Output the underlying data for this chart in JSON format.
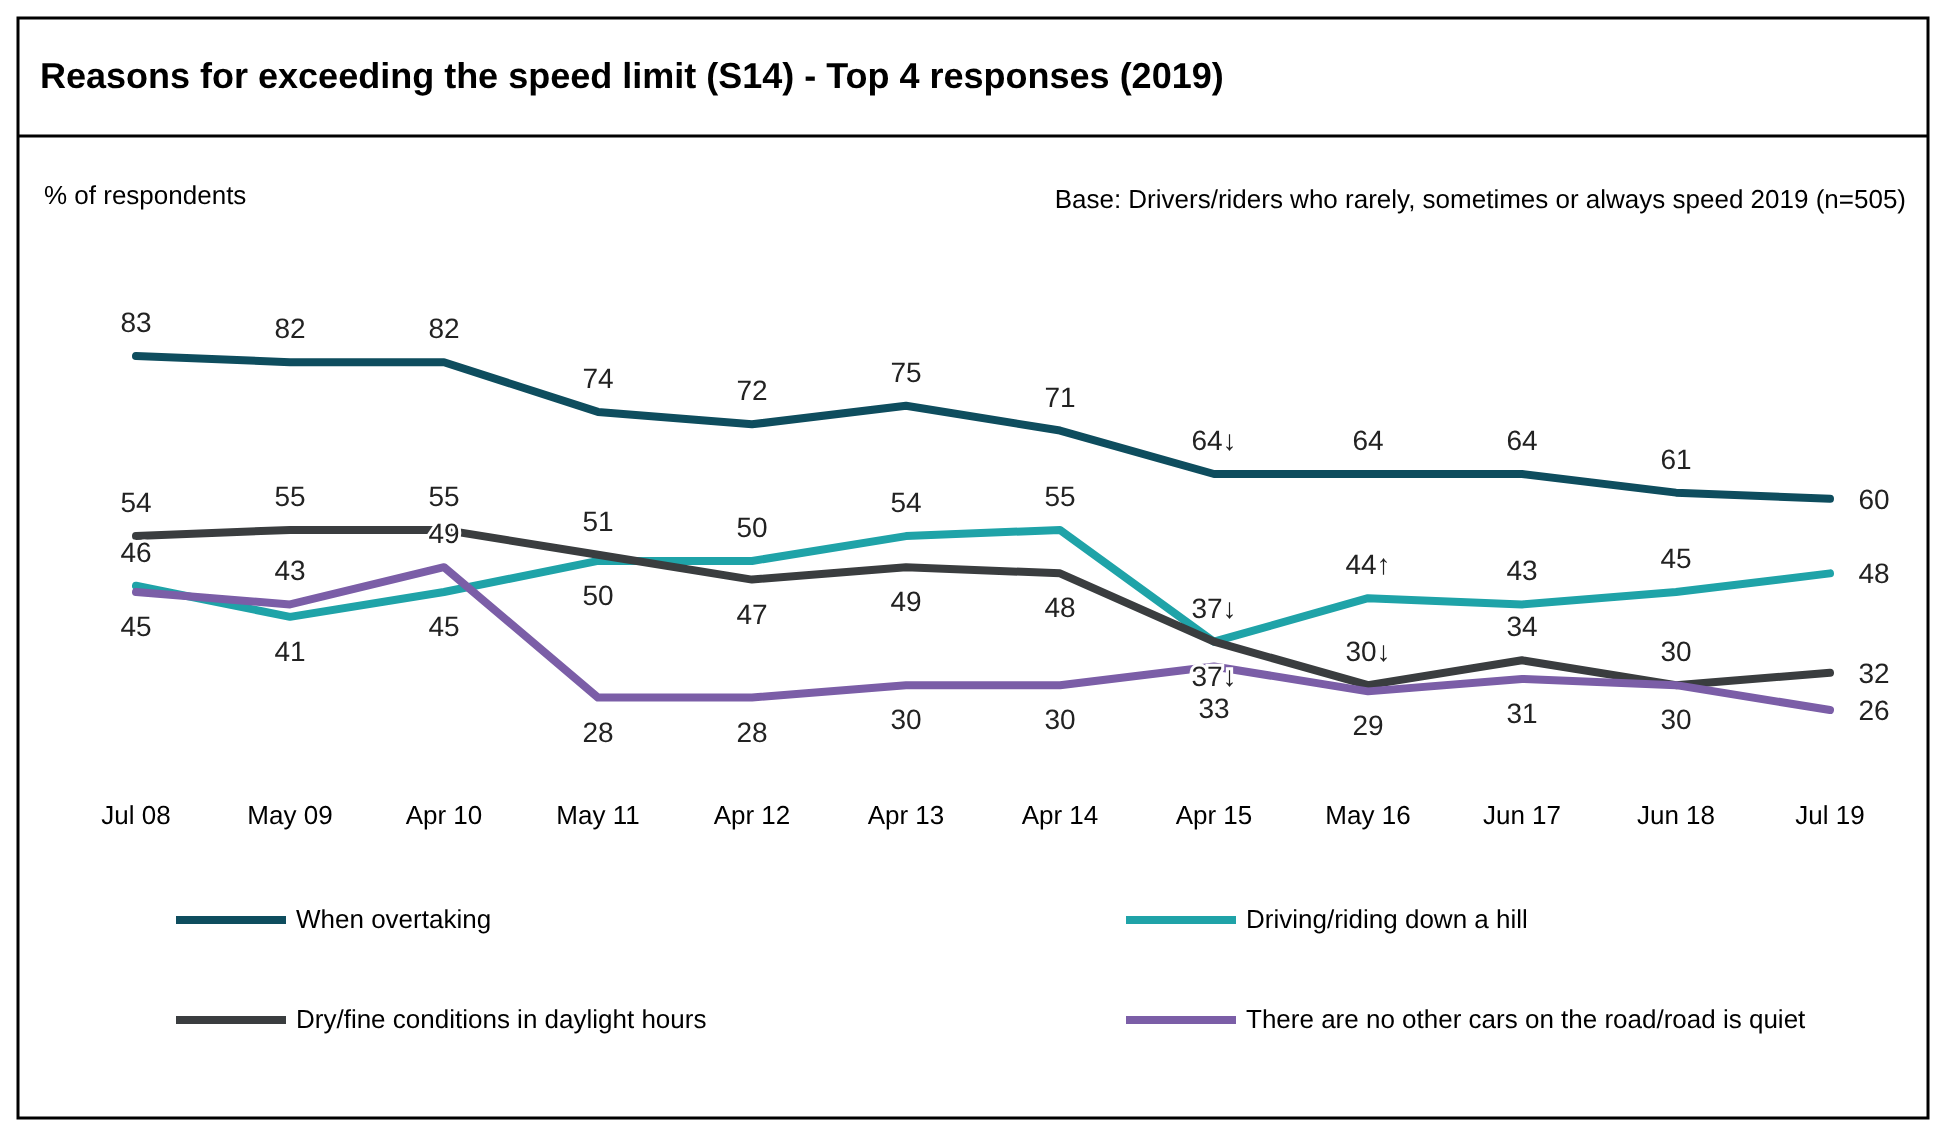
{
  "chart_data": {
    "type": "line",
    "title": "Reasons for exceeding the speed limit (S14) - Top 4 responses (2019)",
    "annotations": [
      "% of respondents",
      "Base: Drivers/riders who rarely, sometimes or always speed 2019 (n=505)"
    ],
    "categories": [
      "Jul 08",
      "May 09",
      "Apr 10",
      "May 11",
      "Apr 12",
      "Apr 13",
      "Apr 14",
      "Apr 15",
      "May 16",
      "Jun 17",
      "Jun 18",
      "Jul 19"
    ],
    "legend": "bottom",
    "grid": false,
    "marker": "none",
    "line_style": "solid",
    "series": [
      {
        "name": "When overtaking",
        "color": "#0e4d5e",
        "values": [
          83,
          82,
          82,
          74,
          72,
          75,
          71,
          64,
          64,
          64,
          61,
          60
        ],
        "value_labels": [
          "83",
          "82",
          "82",
          "74",
          "72",
          "75",
          "71",
          "64↓",
          "64",
          "64",
          "61",
          "60"
        ]
      },
      {
        "name": "Driving/riding down a hill",
        "color": "#1fa3a8",
        "values": [
          46,
          41,
          45,
          50,
          50,
          54,
          55,
          37,
          44,
          43,
          45,
          48
        ],
        "value_labels": [
          "46",
          "41",
          "45",
          "50",
          "50",
          "54",
          "55",
          "37↓",
          "44↑",
          "43",
          "45",
          "48"
        ]
      },
      {
        "name": "Dry/fine conditions in daylight hours",
        "color": "#3a3d3f",
        "values": [
          54,
          55,
          55,
          51,
          47,
          49,
          48,
          37,
          30,
          34,
          30,
          32
        ],
        "value_labels": [
          "54",
          "55",
          "55",
          "51",
          "47",
          "49",
          "48",
          "37↓",
          "30↓",
          "34",
          "30",
          "32"
        ]
      },
      {
        "name": "There are no other cars on the road/road is quiet",
        "color": "#7b5ea7",
        "values": [
          45,
          43,
          49,
          28,
          28,
          30,
          30,
          33,
          29,
          31,
          30,
          26
        ],
        "value_labels": [
          "45",
          "43",
          "49",
          "28",
          "28",
          "30",
          "30",
          "33",
          "29",
          "31",
          "30",
          "26"
        ]
      }
    ]
  }
}
